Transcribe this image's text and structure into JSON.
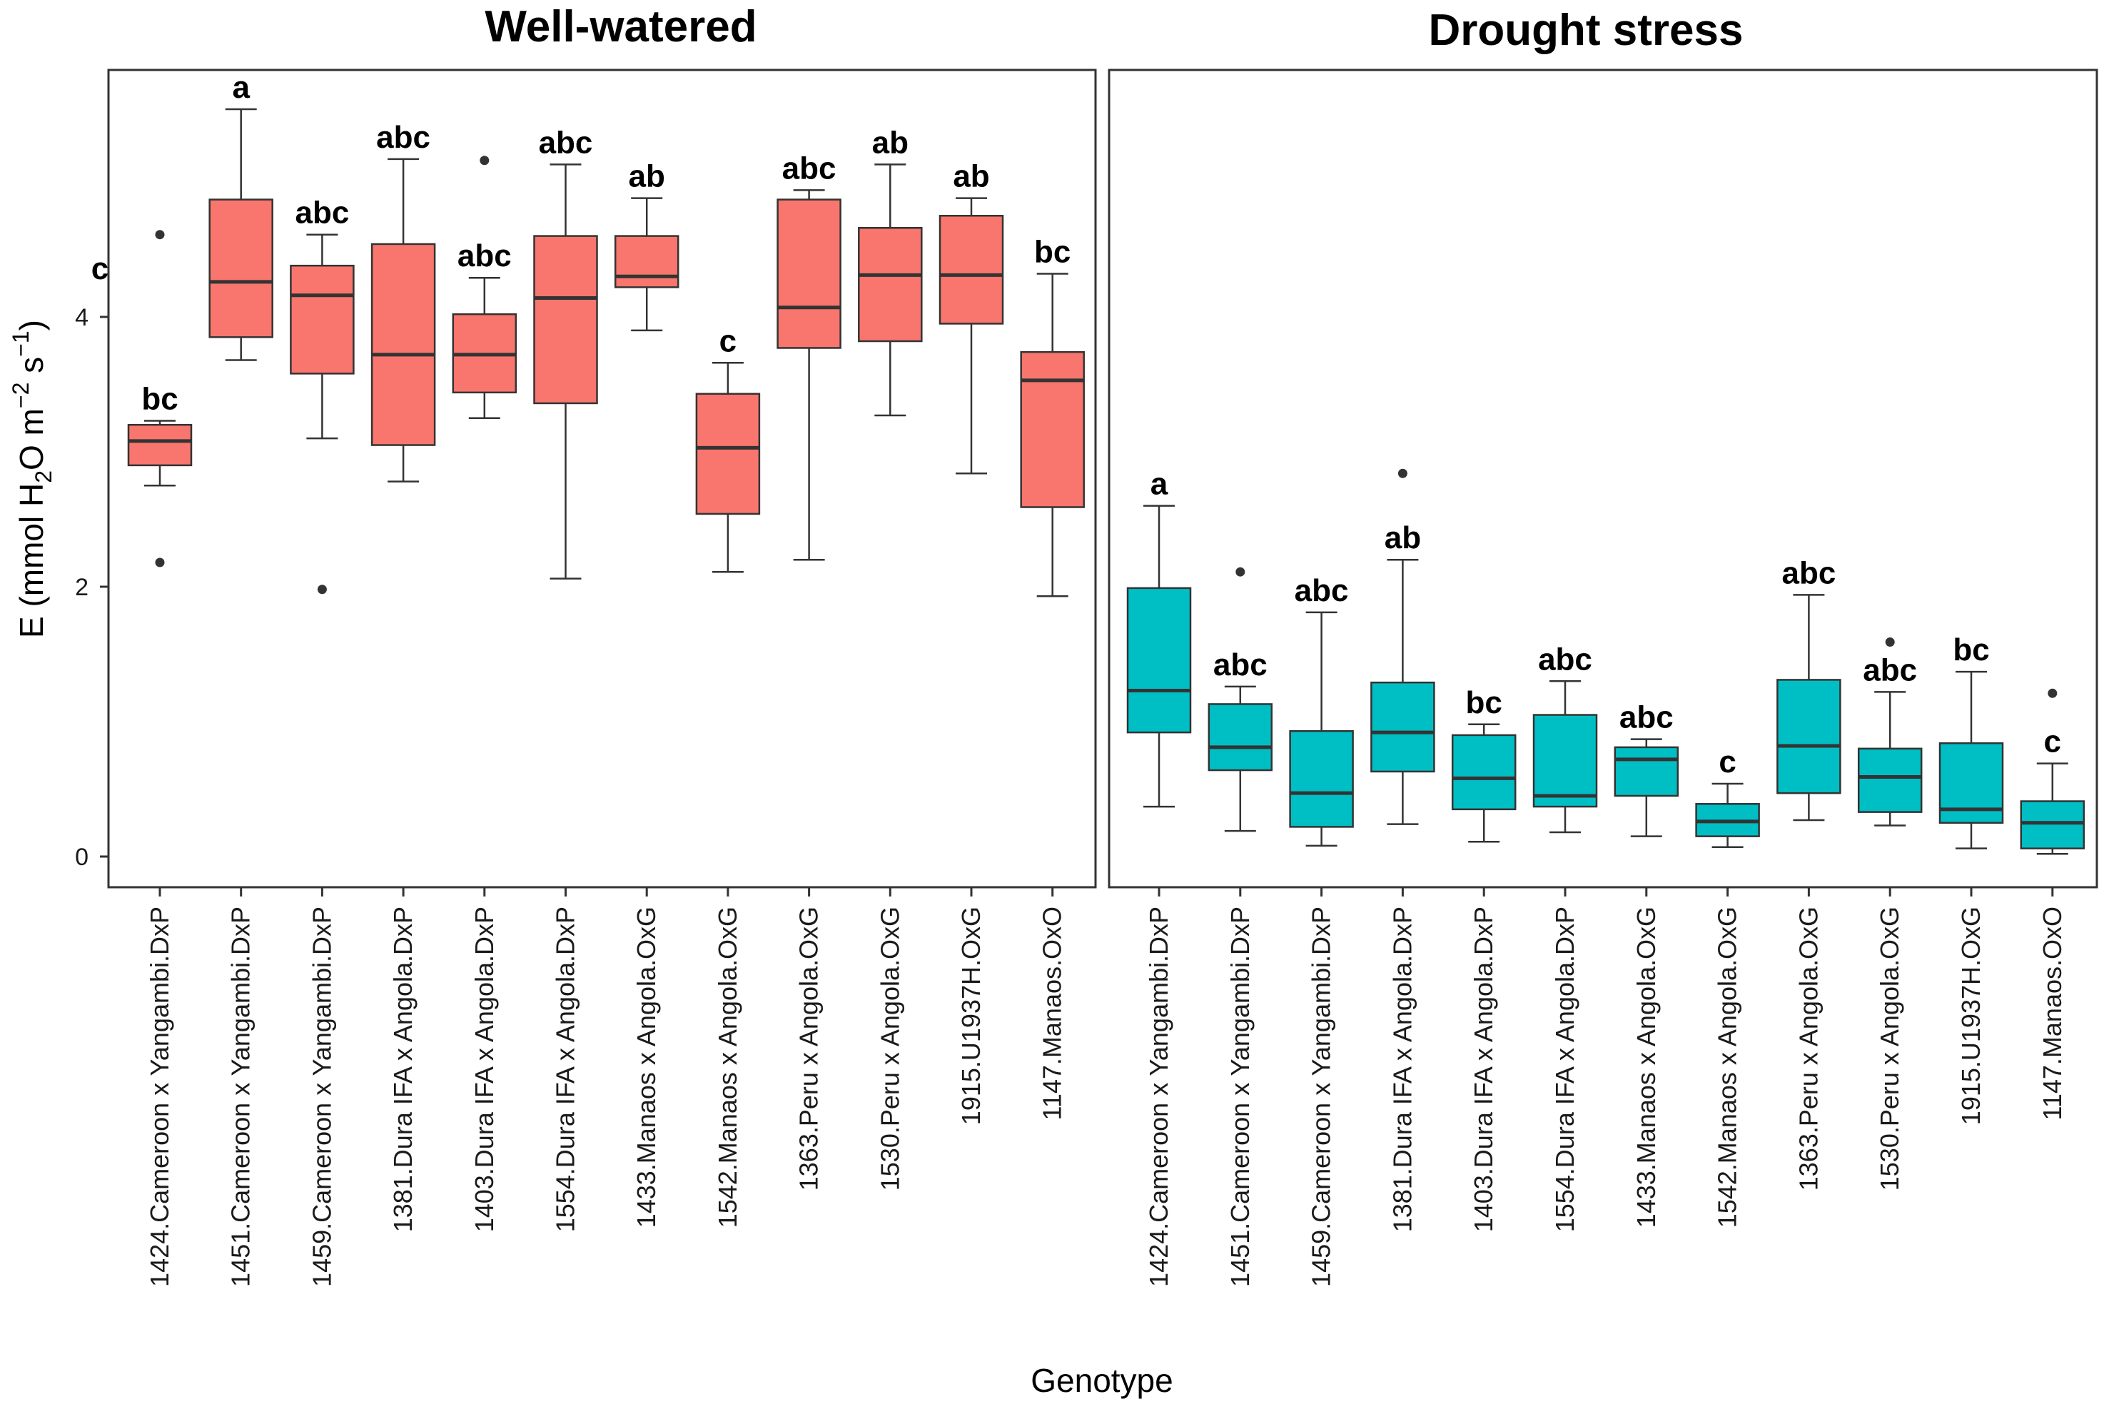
{
  "chart_data": {
    "type": "boxplot",
    "ylabel": "E (mmol H2O m-2 s-1)",
    "ylabel_parts": {
      "main": "E (mmol H",
      "sub": "2",
      "mid": "O m",
      "sup1": "−2",
      "mid2": " s",
      "sup2": "−1",
      "end": ")"
    },
    "xlabel": "Genotype",
    "ylim": [
      -0.2,
      5.85
    ],
    "yticks": [
      0,
      2,
      4
    ],
    "categories": [
      "1424.Cameroon x Yangambi.DxP",
      "1451.Cameroon x Yangambi.DxP",
      "1459.Cameroon x Yangambi.DxP",
      "1381.Dura IFA x Angola.DxP",
      "1403.Dura IFA x Angola.DxP",
      "1554.Dura IFA x Angola.DxP",
      "1433.Manaos x Angola.OxG",
      "1542.Manaos x Angola.OxG",
      "1363.Peru x Angola.OxG",
      "1530.Peru x Angola.OxG",
      "1915.U1937H.OxG",
      "1147.Manaos.OxO"
    ],
    "panels": [
      {
        "title": "Well-watered",
        "color": "#F8766D",
        "extra_label": "c",
        "boxes": [
          {
            "whislo": 2.75,
            "q1": 2.9,
            "med": 3.08,
            "q3": 3.2,
            "whishi": 3.23,
            "outliers": [
              4.61,
              2.18
            ],
            "sig": "bc"
          },
          {
            "whislo": 3.68,
            "q1": 3.85,
            "med": 4.26,
            "q3": 4.87,
            "whishi": 5.54,
            "outliers": [],
            "sig": "a"
          },
          {
            "whislo": 3.1,
            "q1": 3.58,
            "med": 4.16,
            "q3": 4.38,
            "whishi": 4.61,
            "outliers": [
              1.98
            ],
            "sig": "abc"
          },
          {
            "whislo": 2.78,
            "q1": 3.05,
            "med": 3.72,
            "q3": 4.54,
            "whishi": 5.17,
            "outliers": [],
            "sig": "abc"
          },
          {
            "whislo": 3.25,
            "q1": 3.44,
            "med": 3.72,
            "q3": 4.02,
            "whishi": 4.29,
            "outliers": [
              5.16
            ],
            "sig": "abc"
          },
          {
            "whislo": 2.06,
            "q1": 3.36,
            "med": 4.14,
            "q3": 4.6,
            "whishi": 5.13,
            "outliers": [],
            "sig": "abc"
          },
          {
            "whislo": 3.9,
            "q1": 4.22,
            "med": 4.3,
            "q3": 4.6,
            "whishi": 4.88,
            "outliers": [],
            "sig": "ab"
          },
          {
            "whislo": 2.11,
            "q1": 2.54,
            "med": 3.03,
            "q3": 3.43,
            "whishi": 3.66,
            "outliers": [],
            "sig": "c"
          },
          {
            "whislo": 2.2,
            "q1": 3.77,
            "med": 4.07,
            "q3": 4.87,
            "whishi": 4.94,
            "outliers": [],
            "sig": "abc"
          },
          {
            "whislo": 3.27,
            "q1": 3.82,
            "med": 4.31,
            "q3": 4.66,
            "whishi": 5.13,
            "outliers": [],
            "sig": "ab"
          },
          {
            "whislo": 2.84,
            "q1": 3.95,
            "med": 4.31,
            "q3": 4.75,
            "whishi": 4.88,
            "outliers": [],
            "sig": "ab"
          },
          {
            "whislo": 1.93,
            "q1": 2.59,
            "med": 3.53,
            "q3": 3.74,
            "whishi": 4.32,
            "outliers": [],
            "sig": "bc"
          }
        ]
      },
      {
        "title": "Drought stress",
        "color": "#00BFC4",
        "extra_label": "",
        "boxes": [
          {
            "whislo": 0.37,
            "q1": 0.92,
            "med": 1.23,
            "q3": 1.99,
            "whishi": 2.6,
            "outliers": [],
            "sig": "a"
          },
          {
            "whislo": 0.19,
            "q1": 0.64,
            "med": 0.81,
            "q3": 1.13,
            "whishi": 1.26,
            "outliers": [
              2.11
            ],
            "sig": "abc"
          },
          {
            "whislo": 0.08,
            "q1": 0.22,
            "med": 0.47,
            "q3": 0.93,
            "whishi": 1.81,
            "outliers": [],
            "sig": "abc"
          },
          {
            "whislo": 0.24,
            "q1": 0.63,
            "med": 0.92,
            "q3": 1.29,
            "whishi": 2.2,
            "outliers": [
              2.84
            ],
            "sig": "ab"
          },
          {
            "whislo": 0.11,
            "q1": 0.35,
            "med": 0.58,
            "q3": 0.9,
            "whishi": 0.98,
            "outliers": [],
            "sig": "bc"
          },
          {
            "whislo": 0.18,
            "q1": 0.37,
            "med": 0.45,
            "q3": 1.05,
            "whishi": 1.3,
            "outliers": [],
            "sig": "abc"
          },
          {
            "whislo": 0.15,
            "q1": 0.45,
            "med": 0.72,
            "q3": 0.81,
            "whishi": 0.87,
            "outliers": [],
            "sig": "abc"
          },
          {
            "whislo": 0.07,
            "q1": 0.15,
            "med": 0.26,
            "q3": 0.39,
            "whishi": 0.54,
            "outliers": [],
            "sig": "c"
          },
          {
            "whislo": 0.27,
            "q1": 0.47,
            "med": 0.82,
            "q3": 1.31,
            "whishi": 1.94,
            "outliers": [],
            "sig": "abc"
          },
          {
            "whislo": 0.23,
            "q1": 0.33,
            "med": 0.59,
            "q3": 0.8,
            "whishi": 1.22,
            "outliers": [
              1.59
            ],
            "sig": "abc"
          },
          {
            "whislo": 0.06,
            "q1": 0.25,
            "med": 0.35,
            "q3": 0.84,
            "whishi": 1.37,
            "outliers": [],
            "sig": "bc"
          },
          {
            "whislo": 0.02,
            "q1": 0.06,
            "med": 0.25,
            "q3": 0.41,
            "whishi": 0.69,
            "outliers": [
              1.21
            ],
            "sig": "c"
          }
        ]
      }
    ]
  }
}
